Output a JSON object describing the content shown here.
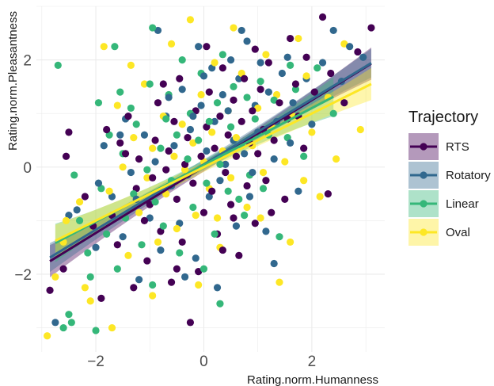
{
  "chart_data": {
    "type": "scatter",
    "title": "",
    "xlabel": "Rating.norm.Humanness",
    "ylabel": "Rating.norm.Pleasantness",
    "xlim": [
      -3.1,
      3.35
    ],
    "ylim": [
      -3.45,
      3.0
    ],
    "xticks": [
      -2,
      0,
      2
    ],
    "yticks": [
      -2,
      0,
      2
    ],
    "grid": true,
    "legend": {
      "title": "Trajectory",
      "position": "right"
    },
    "series": [
      {
        "name": "RTS",
        "color": "#440154",
        "fit": {
          "x_range": [
            -2.85,
            3.1
          ],
          "intercept": 0.01,
          "slope": 0.62,
          "ci_halfwidth_ends": 0.3
        },
        "points": [
          [
            -2.85,
            -2.3
          ],
          [
            -2.6,
            -1.9
          ],
          [
            -2.55,
            0.2
          ],
          [
            -2.5,
            0.65
          ],
          [
            -2.2,
            -0.55
          ],
          [
            -2.05,
            -1.1
          ],
          [
            -1.9,
            -2.45
          ],
          [
            -1.7,
            -0.9
          ],
          [
            -1.6,
            -1.45
          ],
          [
            -1.55,
            0.45
          ],
          [
            -1.4,
            0.95
          ],
          [
            -1.3,
            -2.25
          ],
          [
            -1.25,
            -0.4
          ],
          [
            -1.2,
            0.15
          ],
          [
            -1.05,
            -1.75
          ],
          [
            -1.0,
            -0.7
          ],
          [
            -0.95,
            -0.2
          ],
          [
            -0.9,
            0.5
          ],
          [
            -0.85,
            1.2
          ],
          [
            -0.8,
            -1.2
          ],
          [
            -0.7,
            -0.05
          ],
          [
            -0.65,
            0.3
          ],
          [
            -0.6,
            -2.15
          ],
          [
            -0.55,
            0.85
          ],
          [
            -0.5,
            -0.6
          ],
          [
            -0.45,
            1.65
          ],
          [
            -0.4,
            -1.4
          ],
          [
            -0.35,
            0.05
          ],
          [
            -0.3,
            0.55
          ],
          [
            -0.2,
            -0.3
          ],
          [
            -0.15,
            1.05
          ],
          [
            -0.1,
            -1.95
          ],
          [
            -0.05,
            0.2
          ],
          [
            0.0,
            -0.85
          ],
          [
            0.05,
            0.75
          ],
          [
            0.1,
            1.4
          ],
          [
            0.15,
            -0.45
          ],
          [
            0.2,
            0.35
          ],
          [
            0.25,
            -1.25
          ],
          [
            0.3,
            0.95
          ],
          [
            0.35,
            1.85
          ],
          [
            0.4,
            -0.1
          ],
          [
            0.45,
            0.6
          ],
          [
            0.5,
            -0.7
          ],
          [
            0.55,
            1.25
          ],
          [
            0.6,
            0.2
          ],
          [
            0.65,
            -1.65
          ],
          [
            0.7,
            0.85
          ],
          [
            0.75,
            1.65
          ],
          [
            0.8,
            -0.35
          ],
          [
            0.85,
            0.45
          ],
          [
            0.9,
            1.05
          ],
          [
            0.95,
            -1.05
          ],
          [
            1.0,
            0.25
          ],
          [
            1.05,
            1.45
          ],
          [
            1.1,
            0.7
          ],
          [
            1.15,
            -0.25
          ],
          [
            1.2,
            1.95
          ],
          [
            1.3,
            0.5
          ],
          [
            1.4,
            1.2
          ],
          [
            1.5,
            -0.6
          ],
          [
            1.55,
            0.9
          ],
          [
            1.6,
            2.4
          ],
          [
            1.7,
            1.55
          ],
          [
            1.85,
            0.35
          ],
          [
            1.9,
            2.05
          ],
          [
            2.05,
            1.4
          ],
          [
            2.2,
            2.8
          ],
          [
            2.35,
            1.75
          ],
          [
            2.6,
            1.2
          ],
          [
            2.85,
            2.15
          ],
          [
            3.1,
            2.6
          ],
          [
            -1.8,
            0.7
          ],
          [
            -1.1,
            -1.0
          ],
          [
            -0.25,
            -2.9
          ],
          [
            0.55,
            -0.95
          ],
          [
            1.25,
            -0.85
          ],
          [
            2.3,
            -0.5
          ],
          [
            -0.75,
            1.55
          ],
          [
            0.05,
            2.25
          ],
          [
            0.95,
            2.2
          ],
          [
            -1.45,
            0.25
          ],
          [
            1.75,
            0.95
          ],
          [
            -0.5,
            -1.9
          ],
          [
            0.35,
            -1.55
          ]
        ]
      },
      {
        "name": "Rotatory",
        "color": "#31688e",
        "fit": {
          "x_range": [
            -2.85,
            3.1
          ],
          "intercept": 0.05,
          "slope": 0.61,
          "ci_halfwidth_ends": 0.27
        },
        "points": [
          [
            -2.75,
            -2.9
          ],
          [
            -2.5,
            -0.9
          ],
          [
            -2.35,
            -0.8
          ],
          [
            -2.0,
            -1.5
          ],
          [
            -1.85,
            0.4
          ],
          [
            -1.7,
            -0.55
          ],
          [
            -1.5,
            -1.3
          ],
          [
            -1.45,
            0.9
          ],
          [
            -1.35,
            -0.1
          ],
          [
            -1.2,
            -2.1
          ],
          [
            -1.1,
            0.6
          ],
          [
            -1.0,
            -0.95
          ],
          [
            -0.9,
            0.1
          ],
          [
            -0.85,
            2.55
          ],
          [
            -0.8,
            -1.55
          ],
          [
            -0.7,
            0.95
          ],
          [
            -0.6,
            -0.35
          ],
          [
            -0.55,
            0.4
          ],
          [
            -0.45,
            -1.05
          ],
          [
            -0.4,
            1.45
          ],
          [
            -0.3,
            -0.15
          ],
          [
            -0.25,
            0.7
          ],
          [
            -0.15,
            -1.7
          ],
          [
            -0.1,
            2.25
          ],
          [
            -0.05,
            1.15
          ],
          [
            0.05,
            0.3
          ],
          [
            0.1,
            -0.55
          ],
          [
            0.15,
            1.85
          ],
          [
            0.2,
            0.85
          ],
          [
            0.3,
            -0.25
          ],
          [
            0.35,
            1.35
          ],
          [
            0.4,
            0.05
          ],
          [
            0.5,
            2.0
          ],
          [
            0.55,
            0.5
          ],
          [
            0.6,
            -1.1
          ],
          [
            0.65,
            1.65
          ],
          [
            0.75,
            0.25
          ],
          [
            0.8,
            2.35
          ],
          [
            0.85,
            -0.55
          ],
          [
            0.95,
            1.15
          ],
          [
            1.0,
            0.65
          ],
          [
            1.05,
            1.95
          ],
          [
            1.15,
            -1.2
          ],
          [
            1.2,
            1.4
          ],
          [
            1.3,
            0.15
          ],
          [
            1.35,
            0.85
          ],
          [
            1.45,
            1.75
          ],
          [
            1.55,
            2.05
          ],
          [
            1.65,
            1.2
          ],
          [
            1.75,
            -0.45
          ],
          [
            1.9,
            1.65
          ],
          [
            2.0,
            0.8
          ],
          [
            2.2,
            1.95
          ],
          [
            2.4,
            2.55
          ],
          [
            2.55,
            1.6
          ],
          [
            2.7,
            2.25
          ],
          [
            2.95,
            2.05
          ],
          [
            -0.35,
            -2.05
          ],
          [
            0.25,
            -2.25
          ],
          [
            1.3,
            -1.8
          ],
          [
            -1.55,
            0.6
          ],
          [
            -0.65,
            1.3
          ],
          [
            0.45,
            1.05
          ],
          [
            0.9,
            -0.1
          ],
          [
            1.6,
            0.45
          ],
          [
            -1.95,
            -0.3
          ],
          [
            0.7,
            2.55
          ],
          [
            -0.2,
            0.95
          ],
          [
            0.0,
            1.7
          ],
          [
            -1.25,
            -0.6
          ]
        ]
      },
      {
        "name": "Linear",
        "color": "#35b779",
        "fit": {
          "x_range": [
            -2.75,
            2.4
          ],
          "intercept": 0.04,
          "slope": 0.53,
          "ci_halfwidth_ends": 0.36
        },
        "points": [
          [
            -2.7,
            1.9
          ],
          [
            -2.6,
            -3.0
          ],
          [
            -2.5,
            -2.75
          ],
          [
            -2.45,
            -2.9
          ],
          [
            -2.4,
            -0.15
          ],
          [
            -2.3,
            -1.0
          ],
          [
            -2.1,
            -2.05
          ],
          [
            -2.0,
            -3.05
          ],
          [
            -1.95,
            1.2
          ],
          [
            -1.9,
            -0.4
          ],
          [
            -1.8,
            -1.25
          ],
          [
            -1.75,
            0.6
          ],
          [
            -1.65,
            2.25
          ],
          [
            -1.6,
            -1.9
          ],
          [
            -1.5,
            0.25
          ],
          [
            -1.45,
            -0.95
          ],
          [
            -1.35,
            1.1
          ],
          [
            -1.3,
            -0.5
          ],
          [
            -1.25,
            0.8
          ],
          [
            -1.15,
            -1.45
          ],
          [
            -1.05,
            -0.05
          ],
          [
            -1.0,
            1.55
          ],
          [
            -0.95,
            2.6
          ],
          [
            -0.9,
            -0.65
          ],
          [
            -0.8,
            0.35
          ],
          [
            -0.75,
            -1.1
          ],
          [
            -0.65,
            1.35
          ],
          [
            -0.6,
            -0.25
          ],
          [
            -0.5,
            0.6
          ],
          [
            -0.45,
            -1.6
          ],
          [
            -0.4,
            2.0
          ],
          [
            -0.3,
            0.15
          ],
          [
            -0.25,
            1.0
          ],
          [
            -0.2,
            -0.75
          ],
          [
            -0.1,
            0.5
          ],
          [
            -0.05,
            1.75
          ],
          [
            0.05,
            -0.3
          ],
          [
            0.1,
            0.85
          ],
          [
            0.2,
            -1.25
          ],
          [
            0.25,
            1.2
          ],
          [
            0.3,
            0.05
          ],
          [
            0.35,
            2.1
          ],
          [
            0.45,
            -0.45
          ],
          [
            0.5,
            0.75
          ],
          [
            0.55,
            1.5
          ],
          [
            0.65,
            -0.6
          ],
          [
            0.7,
            0.4
          ],
          [
            0.8,
            1.3
          ],
          [
            0.85,
            -0.15
          ],
          [
            0.95,
            0.9
          ],
          [
            1.05,
            1.6
          ],
          [
            1.1,
            -0.4
          ],
          [
            1.2,
            0.6
          ],
          [
            1.3,
            1.25
          ],
          [
            1.4,
            -1.3
          ],
          [
            1.55,
            0.55
          ],
          [
            1.7,
            1.45
          ],
          [
            1.85,
            0.2
          ],
          [
            2.1,
            1.85
          ],
          [
            2.4,
            1.0
          ],
          [
            0.3,
            -2.55
          ],
          [
            -0.95,
            -2.2
          ],
          [
            -2.15,
            -1.6
          ],
          [
            0.75,
            -0.9
          ],
          [
            1.6,
            1.9
          ],
          [
            -1.55,
            1.4
          ],
          [
            0.0,
            -1.9
          ],
          [
            -0.7,
            0.9
          ]
        ]
      },
      {
        "name": "Oval",
        "color": "#fde725",
        "fit": {
          "x_range": [
            -2.75,
            3.1
          ],
          "intercept": 0.0,
          "slope": 0.5,
          "ci_halfwidth_ends": 0.3
        },
        "points": [
          [
            -2.9,
            -3.15
          ],
          [
            -2.75,
            -2.05
          ],
          [
            -2.55,
            -1.0
          ],
          [
            -2.3,
            -0.65
          ],
          [
            -2.2,
            -2.25
          ],
          [
            -2.1,
            -2.5
          ],
          [
            -1.85,
            2.25
          ],
          [
            -1.7,
            -3.0
          ],
          [
            -1.6,
            1.15
          ],
          [
            -1.5,
            0.0
          ],
          [
            -1.4,
            -1.65
          ],
          [
            -1.3,
            0.55
          ],
          [
            -1.2,
            -0.85
          ],
          [
            -1.1,
            1.55
          ],
          [
            -1.05,
            -0.2
          ],
          [
            -0.95,
            0.35
          ],
          [
            -0.85,
            -1.4
          ],
          [
            -0.75,
            0.95
          ],
          [
            -0.7,
            -0.5
          ],
          [
            -0.6,
            2.3
          ],
          [
            -0.55,
            0.2
          ],
          [
            -0.5,
            -1.15
          ],
          [
            -0.4,
            0.8
          ],
          [
            -0.35,
            -0.05
          ],
          [
            -0.25,
            2.75
          ],
          [
            -0.2,
            0.45
          ],
          [
            -0.15,
            -0.9
          ],
          [
            -0.05,
            1.35
          ],
          [
            0.0,
            0.1
          ],
          [
            0.1,
            -0.4
          ],
          [
            0.15,
            0.65
          ],
          [
            0.2,
            1.95
          ],
          [
            0.3,
            -1.5
          ],
          [
            0.35,
            0.3
          ],
          [
            0.45,
            1.05
          ],
          [
            0.5,
            -0.2
          ],
          [
            0.6,
            0.55
          ],
          [
            0.7,
            1.75
          ],
          [
            0.8,
            -0.75
          ],
          [
            0.9,
            0.4
          ],
          [
            1.0,
            1.1
          ],
          [
            1.1,
            -0.1
          ],
          [
            1.15,
            2.1
          ],
          [
            1.25,
            0.75
          ],
          [
            1.35,
            1.35
          ],
          [
            1.5,
            0.1
          ],
          [
            1.6,
            -1.4
          ],
          [
            1.65,
            0.95
          ],
          [
            1.75,
            2.4
          ],
          [
            1.85,
            -0.25
          ],
          [
            2.0,
            0.65
          ],
          [
            2.15,
            -0.55
          ],
          [
            2.3,
            1.3
          ],
          [
            2.45,
            0.15
          ],
          [
            2.6,
            2.3
          ],
          [
            2.9,
            0.7
          ],
          [
            -2.6,
            -1.4
          ],
          [
            -1.75,
            -0.45
          ],
          [
            -0.95,
            -2.4
          ],
          [
            1.4,
            -2.15
          ],
          [
            1.05,
            -0.95
          ],
          [
            -0.1,
            -2.2
          ],
          [
            0.55,
            2.6
          ],
          [
            -1.35,
            1.9
          ],
          [
            0.25,
            -0.95
          ],
          [
            1.9,
            1.7
          ]
        ]
      }
    ]
  }
}
